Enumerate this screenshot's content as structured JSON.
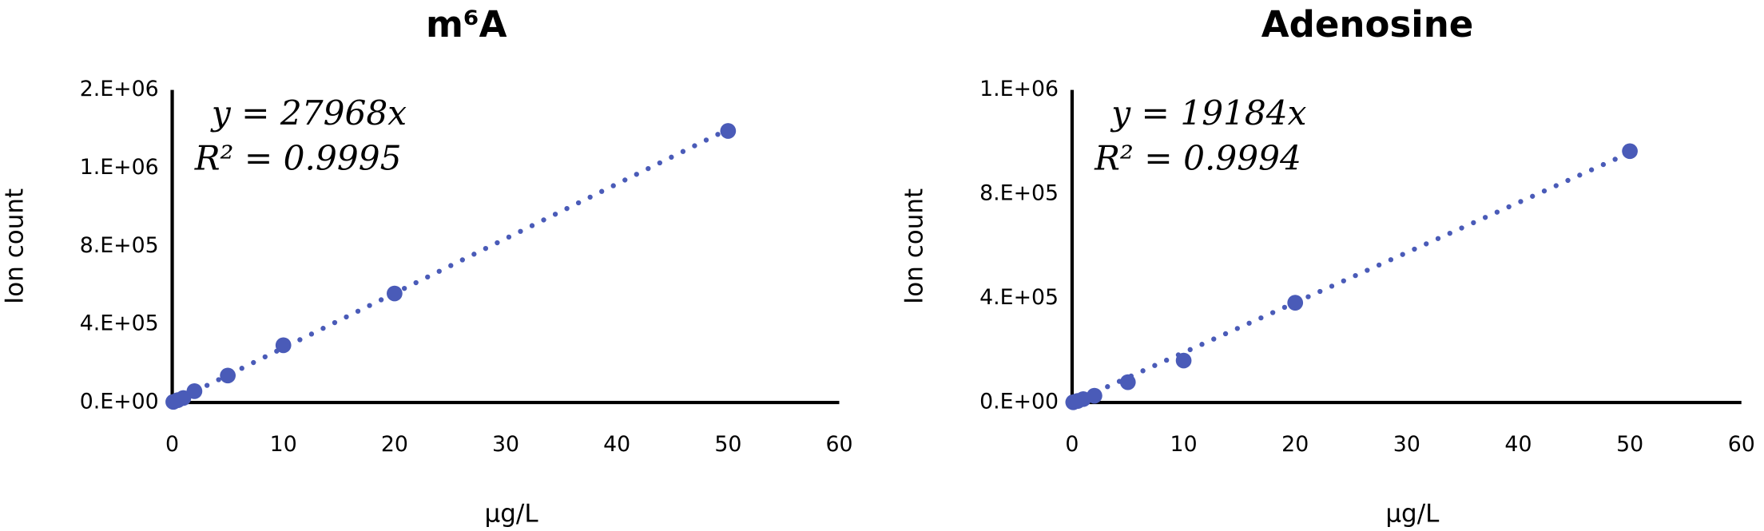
{
  "chart_data": [
    {
      "type": "scatter",
      "title": "m⁶A",
      "x_label": "μg/L",
      "y_label": "Ion count",
      "equation": "y = 27968x",
      "r_squared": "R² = 0.9995",
      "trendline": {
        "slope": 27968
      },
      "series": [
        {
          "color": "#4a5bb8",
          "x": [
            0.1,
            0.5,
            1,
            2,
            5,
            10,
            20,
            50
          ],
          "values": [
            3000,
            12000,
            23000,
            58000,
            138000,
            293000,
            558000,
            1390000
          ]
        }
      ],
      "xlim": [
        0,
        60
      ],
      "xticks": [
        0,
        10,
        20,
        30,
        40,
        50,
        60
      ],
      "ylim": [
        0,
        1600000
      ],
      "yticks": [
        {
          "value": 0,
          "label": "0.E+00"
        },
        {
          "value": 400000,
          "label": "4.E+05"
        },
        {
          "value": 800000,
          "label": "8.E+05"
        },
        {
          "value": 1200000,
          "label": "1.E+06"
        },
        {
          "value": 1600000,
          "label": "2.E+06"
        }
      ]
    },
    {
      "type": "scatter",
      "title": "Adenosine",
      "x_label": "μg/L",
      "y_label": "Ion count",
      "equation": "y = 19184x",
      "r_squared": "R² = 0.9994",
      "trendline": {
        "slope": 19184
      },
      "series": [
        {
          "color": "#4a5bb8",
          "x": [
            0.1,
            0.5,
            1,
            2,
            5,
            10,
            20,
            50
          ],
          "values": [
            1000,
            6000,
            13000,
            26000,
            78000,
            161000,
            383000,
            965000
          ]
        }
      ],
      "xlim": [
        0,
        60
      ],
      "xticks": [
        0,
        10,
        20,
        30,
        40,
        50,
        60
      ],
      "ylim": [
        0,
        1200000
      ],
      "yticks": [
        {
          "value": 0,
          "label": "0.E+00"
        },
        {
          "value": 400000,
          "label": "4.E+05"
        },
        {
          "value": 800000,
          "label": "8.E+05"
        },
        {
          "value": 1200000,
          "label": "1.E+06"
        }
      ]
    }
  ]
}
